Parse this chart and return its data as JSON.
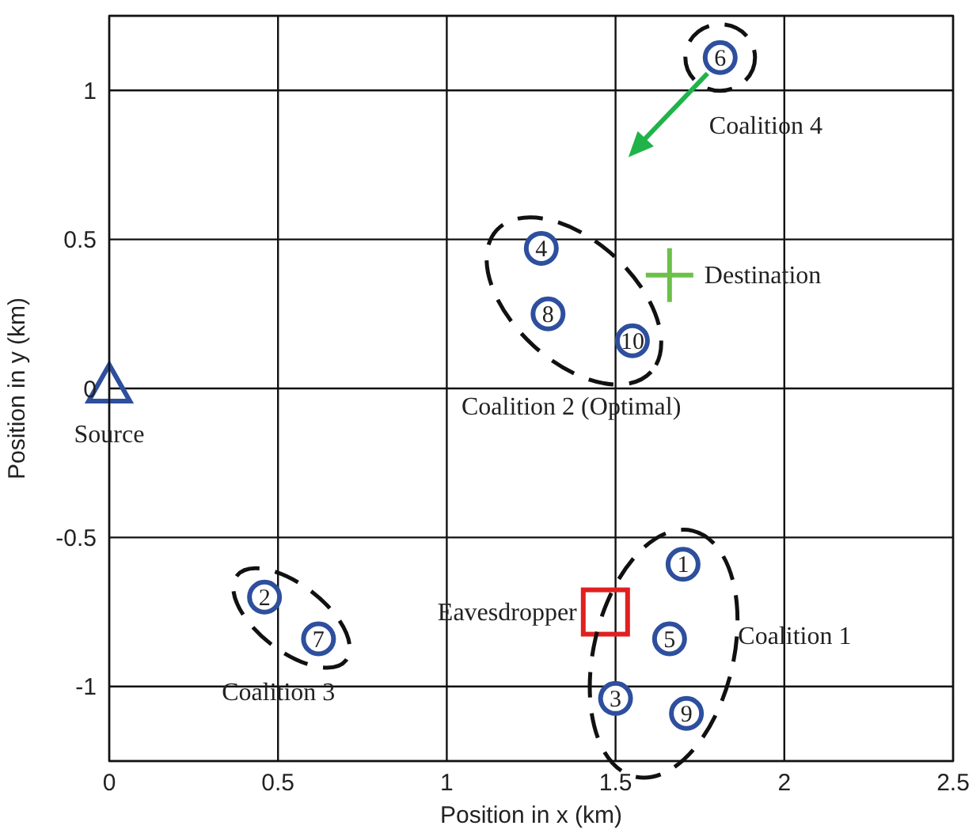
{
  "chart_data": {
    "type": "scatter",
    "xlabel": "Position in x (km)",
    "ylabel": "Position in y (km)",
    "xlim": [
      0,
      2.5
    ],
    "xticks": [
      0,
      0.5,
      1,
      1.5,
      2,
      2.5
    ],
    "ylim": [
      -1.25,
      1.25
    ],
    "yticks": [
      -1,
      -0.5,
      0,
      0.5,
      1
    ],
    "grid": true,
    "series": [
      {
        "marker": "circle",
        "color": "#2e4f9e",
        "x": [
          1.7,
          1.66,
          1.5,
          1.71
        ],
        "values": [
          -0.59,
          -0.84,
          -1.04,
          -1.09
        ]
      },
      {
        "marker": "circle",
        "color": "#2e4f9e",
        "x": [
          1.28,
          1.3,
          1.55
        ],
        "values": [
          0.47,
          0.25,
          0.16
        ]
      },
      {
        "marker": "circle",
        "color": "#2e4f9e",
        "x": [
          0.46,
          0.62
        ],
        "values": [
          -0.7,
          -0.84
        ]
      },
      {
        "marker": "circle",
        "color": "#2e4f9e",
        "x": [
          1.81
        ],
        "values": [
          1.11
        ]
      },
      {
        "marker": "triangle",
        "name": "Source",
        "color": "#2e4f9e",
        "x": [
          0
        ],
        "values": [
          0
        ]
      },
      {
        "marker": "cross",
        "name": "Destination",
        "color": "#6cc04a",
        "x": [
          1.66
        ],
        "values": [
          0.38
        ]
      },
      {
        "marker": "square",
        "name": "Eavesdropper",
        "color": "#e02020",
        "x": [
          1.47
        ],
        "values": [
          -0.75
        ]
      }
    ],
    "annotations": [
      "Coalition 1",
      "Coalition 2 (Optimal)",
      "Coalition 3",
      "Coalition 4",
      {
        "text": "1",
        "x": 1.7,
        "y": -0.59
      },
      {
        "text": "5",
        "x": 1.66,
        "y": -0.84
      },
      {
        "text": "3",
        "x": 1.5,
        "y": -1.04
      },
      {
        "text": "9",
        "x": 1.71,
        "y": -1.09
      },
      {
        "text": "4",
        "x": 1.28,
        "y": 0.47
      },
      {
        "text": "8",
        "x": 1.3,
        "y": 0.25
      },
      {
        "text": "10",
        "x": 1.55,
        "y": 0.16
      },
      {
        "text": "2",
        "x": 0.46,
        "y": -0.7
      },
      {
        "text": "7",
        "x": 0.62,
        "y": -0.84
      },
      {
        "text": "6",
        "x": 1.81,
        "y": 1.11
      }
    ]
  }
}
